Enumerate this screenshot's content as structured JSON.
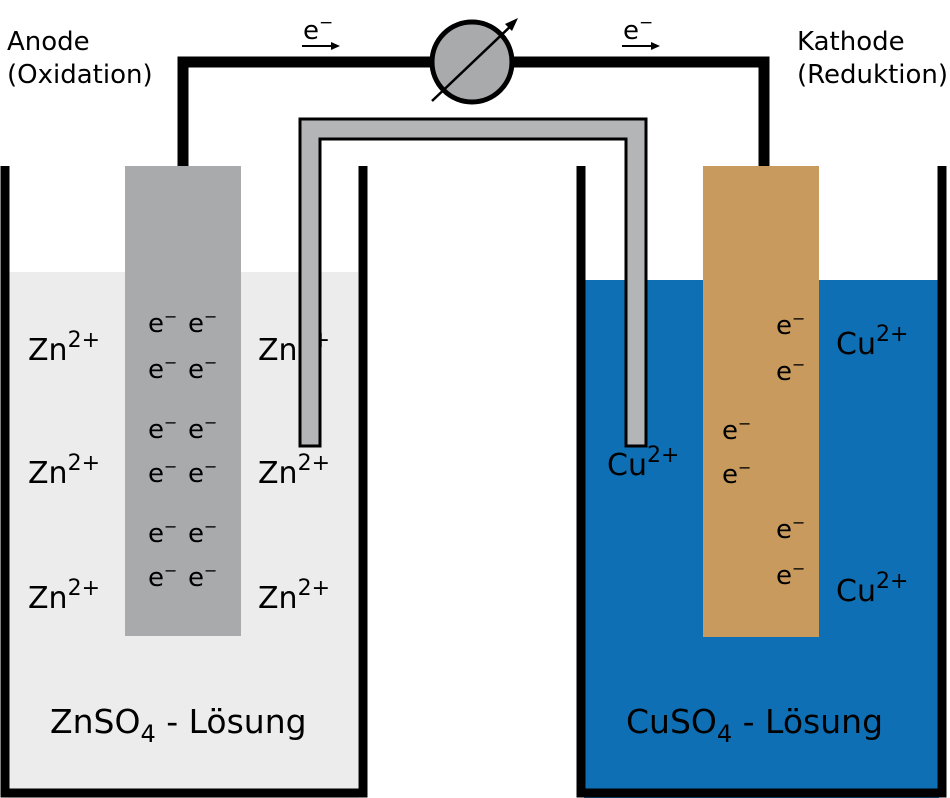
{
  "colors": {
    "wire": "#000000",
    "zn_solution": "#ececec",
    "cu_solution": "#0f6fb4",
    "zn_electrode": "#a9aaac",
    "cu_electrode": "#c89a5e",
    "salt_bridge": "#b4b5b7",
    "meter": "#a9aaac"
  },
  "labels": {
    "anode_line1": "Anode",
    "anode_line2": "(Oxidation)",
    "cathode_line1": "Kathode",
    "cathode_line2": "(Reduktion)",
    "electron_flow": "e",
    "electron_sup": "−"
  },
  "ions": {
    "zn_base": "Zn",
    "zn_charge": "2+",
    "cu_base": "Cu",
    "cu_charge": "2+",
    "electron": "e",
    "electron_sup": "−"
  },
  "solutions": {
    "zn_prefix": "ZnSO",
    "zn_sub": "4",
    "zn_suffix": " - Lösung",
    "cu_prefix": "CuSO",
    "cu_sub": "4",
    "cu_suffix": " - Lösung"
  },
  "icons": {
    "meter": "voltmeter-icon",
    "arrow": "electron-flow-arrow-icon"
  }
}
